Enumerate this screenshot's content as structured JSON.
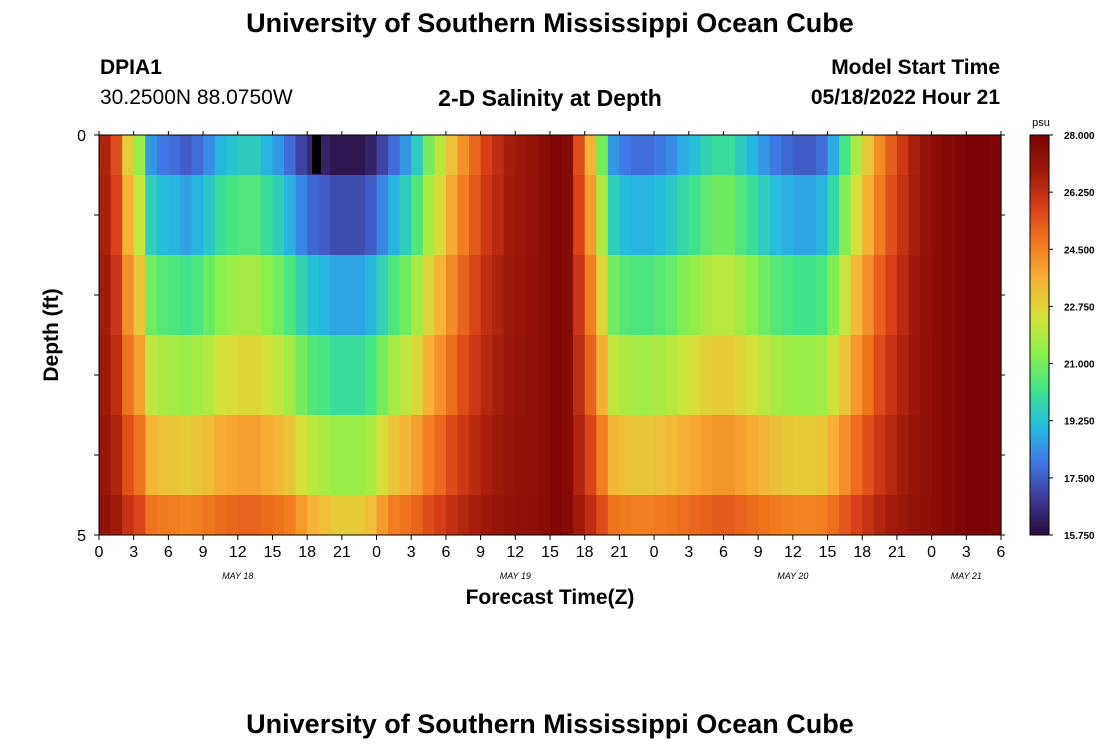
{
  "header": {
    "title": "University of Southern Mississippi Ocean Cube",
    "station": "DPIA1",
    "coords": "30.2500N  88.0750W",
    "subtitle": "2-D Salinity at Depth",
    "model_start_label": "Model Start Time",
    "model_start_value": "05/18/2022 Hour 21"
  },
  "footer": {
    "title": "University of Southern Mississippi Ocean Cube"
  },
  "colors": {
    "ramp": [
      "#2a0c3c",
      "#3e3a96",
      "#3f78e6",
      "#25bce0",
      "#3ee38a",
      "#8cf04a",
      "#d4e23a",
      "#f7b236",
      "#f27a1e",
      "#d9401a",
      "#a01a0a",
      "#7a0403"
    ]
  },
  "chart_data": {
    "type": "heatmap",
    "title": "2-D Salinity at Depth",
    "xlabel": "Forecast Time(Z)",
    "ylabel": "Depth (ft)",
    "x_hours": [
      0,
      1,
      2,
      3,
      4,
      5,
      6,
      7,
      8,
      9,
      10,
      11,
      12,
      13,
      14,
      15,
      16,
      17,
      18,
      19,
      20,
      21,
      22,
      23,
      24,
      25,
      26,
      27,
      28,
      29,
      30,
      31,
      32,
      33,
      34,
      35,
      36,
      37,
      38,
      39,
      40,
      41,
      42,
      43,
      44,
      45,
      46,
      47,
      48,
      49,
      50,
      51,
      52,
      53,
      54,
      55,
      56,
      57,
      58,
      59,
      60,
      61,
      62,
      63,
      64,
      65,
      66,
      67,
      68,
      69,
      70,
      71,
      72,
      73,
      74,
      75,
      76,
      77,
      78
    ],
    "xlim": [
      0,
      78
    ],
    "ylim": [
      0,
      5
    ],
    "depth_layers": [
      "0-0.5",
      "0.5-1.5",
      "1.5-2.5",
      "2.5-3.5",
      "3.5-4.5",
      "4.5-5"
    ],
    "y_tick_labels": [
      "0",
      "5"
    ],
    "x_tick_labels": [
      "0",
      "3",
      "6",
      "9",
      "12",
      "15",
      "18",
      "21",
      "0",
      "3",
      "6",
      "9",
      "12",
      "15",
      "18",
      "21",
      "0",
      "3",
      "6",
      "9",
      "12",
      "15",
      "18",
      "21",
      "0",
      "3",
      "6"
    ],
    "x_day_labels": [
      {
        "label": "MAY 18",
        "hour": 12
      },
      {
        "label": "MAY 19",
        "hour": 36
      },
      {
        "label": "MAY 20",
        "hour": 60
      },
      {
        "label": "MAY 21",
        "hour": 75
      }
    ],
    "surface_profile": [
      26.6,
      25.5,
      23.0,
      21.5,
      18.5,
      18.0,
      17.8,
      17.5,
      17.8,
      18.3,
      19.0,
      19.3,
      19.5,
      19.5,
      19.0,
      18.5,
      17.8,
      17.0,
      16.5,
      16.3,
      16.0,
      16.0,
      16.0,
      16.3,
      17.0,
      17.8,
      18.5,
      19.5,
      21.0,
      22.0,
      23.2,
      24.2,
      25.0,
      25.8,
      26.3,
      26.8,
      27.0,
      27.2,
      27.5,
      27.8,
      27.6,
      25.5,
      23.5,
      21.0,
      18.5,
      18.0,
      17.8,
      17.8,
      18.0,
      18.3,
      18.8,
      19.2,
      19.7,
      20.0,
      20.0,
      19.5,
      19.0,
      18.5,
      18.0,
      17.7,
      17.5,
      17.5,
      17.8,
      18.8,
      20.3,
      21.8,
      23.0,
      24.3,
      25.2,
      26.0,
      26.7,
      27.2,
      27.5,
      27.7,
      27.9,
      28.0,
      28.0,
      27.9,
      27.8
    ],
    "layer_offsets": [
      0,
      1.2,
      2.7,
      4.0,
      5.5,
      7.0
    ],
    "colorbar": {
      "unit": "psu",
      "min": 15.75,
      "max": 28.0,
      "tick_labels": [
        "28.000",
        "26.250",
        "24.500",
        "22.750",
        "21.000",
        "19.250",
        "17.500",
        "15.750"
      ]
    }
  }
}
